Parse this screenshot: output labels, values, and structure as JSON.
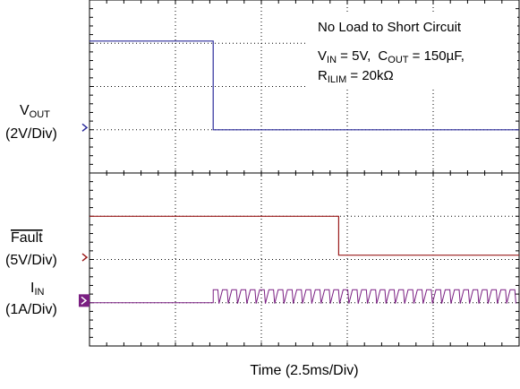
{
  "chart_data": {
    "type": "line",
    "title": "No Load to Short Circuit",
    "conditions": {
      "vin": {
        "symbol": "V",
        "subscript": "IN",
        "text": " = 5V,"
      },
      "cout": {
        "symbol": "C",
        "subscript": "OUT",
        "text": " = 150µF,"
      },
      "rilim": {
        "symbol": "R",
        "subscript": "ILIM",
        "text": " = 20kΩ"
      }
    },
    "xlabel": "Time  (2.5ms/Div)",
    "xdivisions": 5,
    "ydivisions": 8,
    "xlim_ms": [
      0,
      12.5
    ],
    "grid": true,
    "channels": [
      {
        "name_main": "V",
        "name_sub": "OUT",
        "scale": "(2V/Div)",
        "color": "#2b2b9b",
        "marker_color": "#2b2b9b",
        "marker_style": "arrow",
        "ground_div": 5.05,
        "x_ms": [
          0,
          3.6,
          3.6,
          12.5
        ],
        "y_div": [
          7.05,
          7.05,
          5.0,
          5.0
        ]
      },
      {
        "name_main": "Fault",
        "overline": true,
        "scale": "(5V/Div)",
        "color": "#9b1b1b",
        "marker_color": "#9b1b1b",
        "marker_style": "arrow",
        "ground_div": 2.05,
        "x_ms": [
          0,
          7.25,
          7.25,
          12.5
        ],
        "y_div": [
          3.0,
          3.0,
          2.1,
          2.1
        ]
      },
      {
        "name_main": "I",
        "name_sub": "IN",
        "scale": "(1A/Div)",
        "color": "#7a1f82",
        "marker_color": "#7a1f82",
        "marker_style": "box",
        "ground_div": 1.05,
        "baseline_div": 1.0,
        "step_ms": 3.6,
        "pulse_period_ms": 0.27,
        "pulse_low_div": 0.98,
        "pulse_high_div": 1.3
      }
    ]
  }
}
